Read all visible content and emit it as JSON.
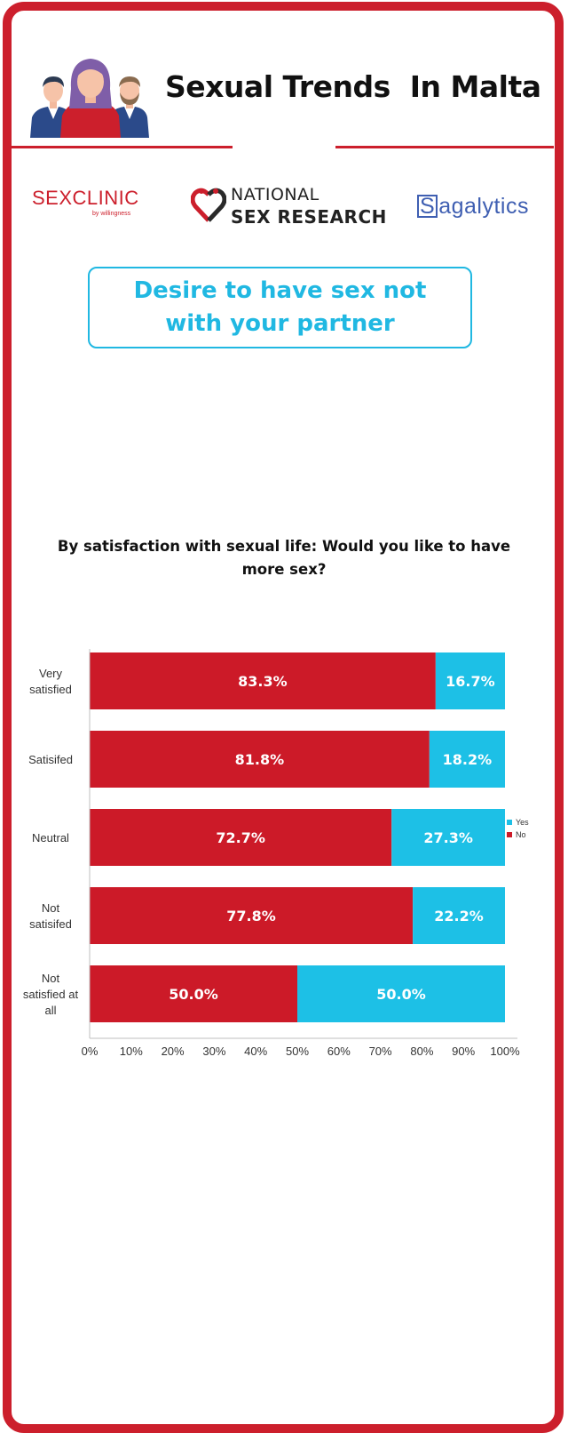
{
  "header": {
    "title": "Sexual Trends  In Malta"
  },
  "logos": {
    "sexclinic": {
      "main": "SEXCLINIC",
      "sub": "by willingness"
    },
    "national_sex_research": {
      "line1": "NATIONAL",
      "line2": "SEX RESEARCH"
    },
    "sagalytics": {
      "initial": "S",
      "rest": "agalytics"
    }
  },
  "topic": {
    "text": "Desire to have sex not with your partner"
  },
  "colors": {
    "brand_red": "#cc1f2c",
    "accent_blue": "#20b8e2",
    "no_series": "#cc1a28",
    "yes_series": "#1dc0e6"
  },
  "chart_data": {
    "type": "bar",
    "orientation": "horizontal",
    "stacked": true,
    "title": "By satisfaction with sexual life: Would you like to have more sex?",
    "categories": [
      "Very satisfied",
      "Satisifed",
      "Neutral",
      "Not satisifed",
      "Not satisfied at all"
    ],
    "category_label_lines": [
      [
        "Very",
        "satisfied"
      ],
      [
        "Satisifed"
      ],
      [
        "Neutral"
      ],
      [
        "Not",
        "satisifed"
      ],
      [
        "Not",
        "satisfied at",
        "all"
      ]
    ],
    "series": [
      {
        "name": "No",
        "values": [
          83.3,
          81.8,
          72.7,
          77.8,
          50.0
        ],
        "labels": [
          "83.3%",
          "81.8%",
          "72.7%",
          "77.8%",
          "50.0%"
        ],
        "color": "#cc1a28"
      },
      {
        "name": "Yes",
        "values": [
          16.7,
          18.2,
          27.3,
          22.2,
          50.0
        ],
        "labels": [
          "16.7%",
          "18.2%",
          "27.3%",
          "22.2%",
          "50.0%"
        ],
        "color": "#1dc0e6"
      }
    ],
    "legend": [
      "Yes",
      "No"
    ],
    "legend_position": "right",
    "xlim": [
      0,
      100
    ],
    "xticks": [
      "0%",
      "10%",
      "20%",
      "30%",
      "40%",
      "50%",
      "60%",
      "70%",
      "80%",
      "90%",
      "100%"
    ],
    "grid": false
  }
}
